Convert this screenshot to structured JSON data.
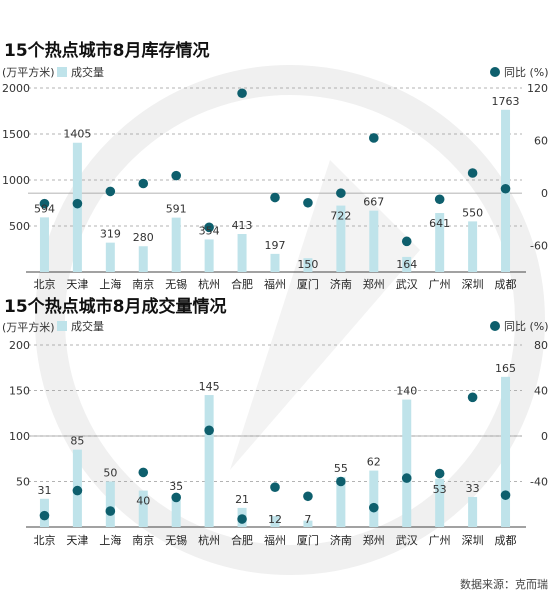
{
  "colors": {
    "bar": "#bfe3ea",
    "dot": "#0e5f6d",
    "text": "#222222",
    "watermark": "#f0f0f0"
  },
  "source": "数据来源：克而瑞",
  "chart_data": [
    {
      "type": "bar",
      "title": "15个热点城市8月库存情况",
      "ylabel": "(万平方米)",
      "bar_legend": "成交量",
      "dot_legend": "同比 (%)",
      "categories": [
        "北京",
        "天津",
        "上海",
        "南京",
        "无锡",
        "杭州",
        "合肥",
        "福州",
        "厦门",
        "济南",
        "郑州",
        "武汉",
        "广州",
        "深圳",
        "成都"
      ],
      "ylim": [
        0,
        2000
      ],
      "yticks": [
        500,
        1000,
        1500,
        2000
      ],
      "y2lim": [
        -90,
        120
      ],
      "y2ticks": [
        120,
        60,
        0,
        -60
      ],
      "series": [
        {
          "name": "成交量",
          "kind": "bar",
          "values": [
            594,
            1405,
            319,
            280,
            591,
            354,
            413,
            197,
            150,
            722,
            667,
            164,
            641,
            550,
            1763
          ]
        },
        {
          "name": "同比 (%)",
          "kind": "dot",
          "axis": "right",
          "values": [
            -12,
            -12,
            2,
            11,
            20,
            -39,
            114,
            -5,
            -11,
            0,
            63,
            -55,
            -7,
            23,
            5
          ]
        }
      ]
    },
    {
      "type": "bar",
      "title": "15个热点城市8月成交量情况",
      "ylabel": "(万平方米)",
      "bar_legend": "成交量",
      "dot_legend": "同比 (%)",
      "categories": [
        "北京",
        "天津",
        "上海",
        "南京",
        "无锡",
        "杭州",
        "合肥",
        "福州",
        "厦门",
        "济南",
        "郑州",
        "武汉",
        "广州",
        "深圳",
        "成都"
      ],
      "ylim": [
        0,
        200
      ],
      "yticks": [
        50,
        100,
        150,
        200
      ],
      "y2lim": [
        -80,
        80
      ],
      "y2ticks": [
        80,
        40,
        0,
        -40
      ],
      "series": [
        {
          "name": "成交量",
          "kind": "bar",
          "values": [
            31,
            85,
            50,
            40,
            35,
            145,
            21,
            12,
            7,
            55,
            62,
            140,
            53,
            33,
            165
          ]
        },
        {
          "name": "同比 (%)",
          "kind": "dot",
          "axis": "right",
          "values": [
            -70,
            -48,
            -66,
            -32,
            -54,
            5,
            -73,
            -45,
            -53,
            -40,
            -63,
            -37,
            -33,
            34,
            -52
          ]
        }
      ]
    }
  ]
}
